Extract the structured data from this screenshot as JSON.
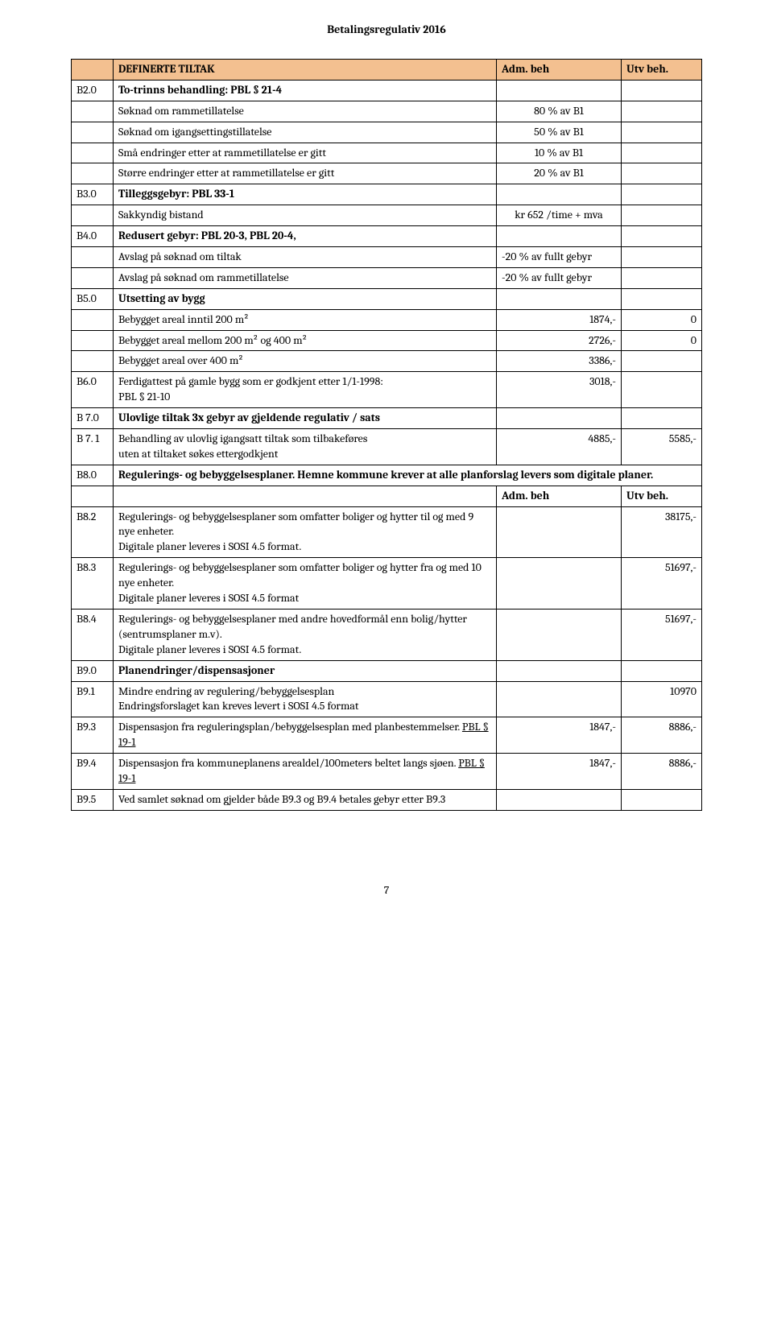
{
  "document": {
    "header": "Betalingsregulativ 2016",
    "page_number": "7"
  },
  "table": {
    "colors": {
      "header_bg": "#f3c090",
      "border": "#000000",
      "text": "#000000"
    },
    "rows": [
      {
        "type": "header",
        "code": "",
        "desc": "DEFINERTE TILTAK",
        "val": "Adm. beh",
        "val2": "Utv beh."
      },
      {
        "type": "section",
        "code": "B2.0",
        "desc": "To-trinns behandling: PBL § 21-4",
        "val": "",
        "val2": ""
      },
      {
        "type": "data",
        "code": "",
        "desc": "Søknad om rammetillatelse",
        "val": "80 % av B1",
        "val2": "",
        "val_align": "center"
      },
      {
        "type": "data",
        "code": "",
        "desc": "Søknad om igangsettingstillatelse",
        "val": "50 % av B1",
        "val2": "",
        "val_align": "center"
      },
      {
        "type": "data",
        "code": "",
        "desc": "Små endringer etter at rammetillatelse er gitt",
        "val": "10 % av B1",
        "val2": "",
        "val_align": "center"
      },
      {
        "type": "data",
        "code": "",
        "desc": "Større endringer etter at rammetillatelse er gitt",
        "val": "20 % av B1",
        "val2": "",
        "val_align": "center"
      },
      {
        "type": "section",
        "code": "B3.0",
        "desc": "Tilleggsgebyr: PBL 33-1",
        "val": "",
        "val2": ""
      },
      {
        "type": "data",
        "code": "",
        "desc": "Sakkyndig bistand",
        "val": "kr 652 /time  + mva",
        "val2": "",
        "val_align": "center"
      },
      {
        "type": "section",
        "code": "B4.0",
        "desc": "Redusert gebyr: PBL 20-3, PBL 20-4,",
        "val": "",
        "val2": ""
      },
      {
        "type": "data",
        "code": "",
        "desc": "Avslag på søknad om tiltak",
        "val": "-20 % av fullt gebyr",
        "val2": "",
        "val_align": "left"
      },
      {
        "type": "data",
        "code": "",
        "desc": "Avslag på søknad om rammetillatelse",
        "val": "-20 % av fullt gebyr",
        "val2": "",
        "val_align": "left"
      },
      {
        "type": "section",
        "code": "B5.0",
        "desc": "Utsetting av bygg",
        "val": "",
        "val2": ""
      },
      {
        "type": "data",
        "code": "",
        "desc": "Bebygget areal inntil 200 m²",
        "val": "1874,-",
        "val2": "0"
      },
      {
        "type": "data",
        "code": "",
        "desc": "Bebygget areal mellom 200 m² og 400 m²",
        "val": "2726,-",
        "val2": "0"
      },
      {
        "type": "data",
        "code": "",
        "desc": "Bebygget areal over 400 m²",
        "val": "3386,-",
        "val2": ""
      },
      {
        "type": "data",
        "code": "B6.0",
        "desc": "Ferdigattest på gamle bygg som er godkjent etter 1/1-1998:\nPBL § 21-10",
        "val": "3018,-",
        "val2": ""
      },
      {
        "type": "section",
        "code": "B 7.0",
        "desc": "Ulovlige tiltak 3x gebyr av gjeldende regulativ / sats",
        "val": "",
        "val2": ""
      },
      {
        "type": "data",
        "code": "B 7. 1",
        "desc": "Behandling av ulovlig igangsatt tiltak som tilbakeføres\nuten at tiltaket søkes ettergodkjent",
        "val": "4885,-",
        "val2": "5585,-"
      },
      {
        "type": "section-span",
        "code": "B8.0",
        "desc": "Regulerings- og bebyggelsesplaner.  Hemne kommune krever at alle planforslag levers som digitale planer."
      },
      {
        "type": "subheader",
        "code": "",
        "desc": "",
        "val": "Adm. beh",
        "val2": "Utv beh."
      },
      {
        "type": "data",
        "code": "B8.2",
        "desc": "Regulerings- og bebyggelsesplaner som omfatter boliger og hytter til og med 9 nye enheter.\nDigitale planer leveres i SOSI 4.5 format.",
        "val": "",
        "val2": "38175,-"
      },
      {
        "type": "data",
        "code": "B8.3",
        "desc": "Regulerings- og bebyggelsesplaner som omfatter boliger og hytter fra og med 10 nye enheter.\nDigitale planer leveres i SOSI 4.5 format",
        "val": "",
        "val2": "51697,-"
      },
      {
        "type": "data",
        "code": "B8.4",
        "desc": "Regulerings- og bebyggelsesplaner med andre hovedformål enn bolig/hytter (sentrumsplaner m.v).\nDigitale planer leveres i SOSI 4.5 format.",
        "val": "",
        "val2": "51697,-"
      },
      {
        "type": "section",
        "code": "B9.0",
        "desc": "Planendringer/dispensasjoner",
        "val": "",
        "val2": ""
      },
      {
        "type": "data",
        "code": "B9.1",
        "desc": "Mindre endring av regulering/bebyggelsesplan\nEndringsforslaget kan kreves levert i SOSI 4.5 format",
        "val": "",
        "val2": "10970"
      },
      {
        "type": "data",
        "code": "B9.3",
        "desc": "Dispensasjon fra reguleringsplan/bebyggelsesplan med planbestemmelser. PBL § 19-1",
        "val": "1847,-",
        "val2": "8886,-",
        "underline_last": "PBL § 19-1"
      },
      {
        "type": "data",
        "code": "B9.4",
        "desc": "Dispensasjon fra kommuneplanens arealdel/100meters beltet langs sjøen. PBL § 19-1",
        "val": "1847,-",
        "val2": "8886,-",
        "underline_last": "PBL § 19-1"
      },
      {
        "type": "data",
        "code": "B9.5",
        "desc": "Ved samlet søknad om gjelder både B9.3 og B9.4 betales gebyr etter B9.3",
        "val": "",
        "val2": ""
      }
    ]
  }
}
